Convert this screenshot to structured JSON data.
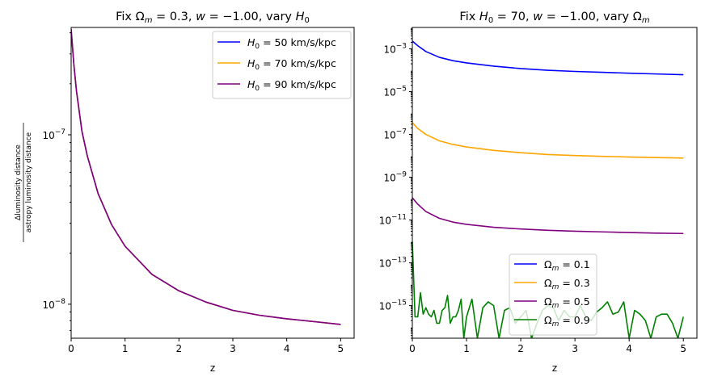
{
  "chart_data": [
    {
      "type": "line",
      "title": "Fix Ωₘ = 0.3, w = −1.00, vary H₀",
      "title_parts": {
        "a": "Fix ",
        "b": "Ω",
        "c": "m",
        "d": " = 0.3, ",
        "e": "w",
        "f": " = −1.00, vary ",
        "g": "H",
        "h": "0"
      },
      "xlabel": "z",
      "ylabel": {
        "numerator": "Δluminosity distance",
        "denominator": "astropy luminosity distance"
      },
      "yscale": "log",
      "xlim": [
        0,
        5.25
      ],
      "ylim": [
        6.3e-09,
        4.3e-07
      ],
      "xticks": [
        0,
        1,
        2,
        3,
        4,
        5
      ],
      "xtick_labels": [
        "0",
        "1",
        "2",
        "3",
        "4",
        "5"
      ],
      "yticks": [
        1e-08,
        1e-07
      ],
      "ytick_labels": [
        {
          "base": "10",
          "exp": "−8"
        },
        {
          "base": "10",
          "exp": "−7"
        }
      ],
      "legend_location": "upper right",
      "series": [
        {
          "name": "H₀ = 50 km/s/kpc",
          "legend": {
            "sym": "H",
            "sub": "0",
            "text": " = 50 km/s/kpc"
          },
          "color": "#0000ff",
          "x": [
            0,
            0.05,
            0.1,
            0.2,
            0.3,
            0.5,
            0.75,
            1,
            1.5,
            2,
            2.5,
            3,
            3.5,
            4,
            4.5,
            5
          ],
          "y": [
            4.2e-07,
            2.6e-07,
            1.8e-07,
            1.05e-07,
            7.5e-08,
            4.5e-08,
            2.95e-08,
            2.2e-08,
            1.5e-08,
            1.2e-08,
            1.03e-08,
            9.2e-09,
            8.6e-09,
            8.2e-09,
            7.9e-09,
            7.6e-09
          ]
        },
        {
          "name": "H₀ = 70 km/s/kpc",
          "legend": {
            "sym": "H",
            "sub": "0",
            "text": " = 70 km/s/kpc"
          },
          "color": "#ffa500",
          "x": [
            0,
            0.05,
            0.1,
            0.2,
            0.3,
            0.5,
            0.75,
            1,
            1.5,
            2,
            2.5,
            3,
            3.5,
            4,
            4.5,
            5
          ],
          "y": [
            4.2e-07,
            2.6e-07,
            1.8e-07,
            1.05e-07,
            7.5e-08,
            4.5e-08,
            2.95e-08,
            2.2e-08,
            1.5e-08,
            1.2e-08,
            1.03e-08,
            9.2e-09,
            8.6e-09,
            8.2e-09,
            7.9e-09,
            7.6e-09
          ]
        },
        {
          "name": "H₀ = 90 km/s/kpc",
          "legend": {
            "sym": "H",
            "sub": "0",
            "text": " = 90 km/s/kpc"
          },
          "color": "#800080",
          "x": [
            0,
            0.05,
            0.1,
            0.2,
            0.3,
            0.5,
            0.75,
            1,
            1.5,
            2,
            2.5,
            3,
            3.5,
            4,
            4.5,
            5
          ],
          "y": [
            4.2e-07,
            2.6e-07,
            1.8e-07,
            1.05e-07,
            7.5e-08,
            4.5e-08,
            2.95e-08,
            2.2e-08,
            1.5e-08,
            1.2e-08,
            1.03e-08,
            9.2e-09,
            8.6e-09,
            8.2e-09,
            7.9e-09,
            7.6e-09
          ]
        }
      ]
    },
    {
      "type": "line",
      "title": "Fix H₀ = 70, w = −1.00, vary Ωₘ",
      "title_parts": {
        "a": "Fix ",
        "b": "H",
        "c": "0",
        "d": " = 70, ",
        "e": "w",
        "f": " = −1.00, vary ",
        "g": "Ω",
        "h": "m"
      },
      "xlabel": "z",
      "yscale": "log",
      "xlim": [
        0,
        5.25
      ],
      "ylim": [
        3e-17,
        0.01
      ],
      "xticks": [
        0,
        1,
        2,
        3,
        4,
        5
      ],
      "xtick_labels": [
        "0",
        "1",
        "2",
        "3",
        "4",
        "5"
      ],
      "yticks": [
        1e-15,
        1e-13,
        1e-11,
        1e-09,
        1e-07,
        1e-05,
        0.001
      ],
      "ytick_labels": [
        {
          "base": "10",
          "exp": "−15"
        },
        {
          "base": "10",
          "exp": "−13"
        },
        {
          "base": "10",
          "exp": "−11"
        },
        {
          "base": "10",
          "exp": "−9"
        },
        {
          "base": "10",
          "exp": "−7"
        },
        {
          "base": "10",
          "exp": "−5"
        },
        {
          "base": "10",
          "exp": "−3"
        }
      ],
      "legend_location": "lower center",
      "series": [
        {
          "name": "Ωₘ = 0.1",
          "legend": {
            "sym": "Ω",
            "sub": "m",
            "text": " = 0.1"
          },
          "color": "#0000ff",
          "x": [
            0,
            0.1,
            0.25,
            0.5,
            0.75,
            1,
            1.5,
            2,
            2.5,
            3,
            3.5,
            4,
            4.5,
            5
          ],
          "y": [
            0.0023,
            0.0014,
            0.00075,
            0.0004,
            0.00028,
            0.00022,
            0.000155,
            0.00012,
            0.0001,
            8.8e-05,
            8e-05,
            7.3e-05,
            6.7e-05,
            6.2e-05
          ]
        },
        {
          "name": "Ωₘ = 0.3",
          "legend": {
            "sym": "Ω",
            "sub": "m",
            "text": " = 0.3"
          },
          "color": "#ffa500",
          "x": [
            0,
            0.1,
            0.25,
            0.5,
            0.75,
            1,
            1.5,
            2,
            2.5,
            3,
            3.5,
            4,
            4.5,
            5
          ],
          "y": [
            3.6e-07,
            1.9e-07,
            1e-07,
            5e-08,
            3.4e-08,
            2.6e-08,
            1.8e-08,
            1.4e-08,
            1.15e-08,
            1.03e-08,
            9.5e-09,
            8.8e-09,
            8.3e-09,
            7.9e-09
          ]
        },
        {
          "name": "Ωₘ = 0.5",
          "legend": {
            "sym": "Ω",
            "sub": "m",
            "text": " = 0.5"
          },
          "color": "#800080",
          "x": [
            0,
            0.1,
            0.25,
            0.5,
            0.75,
            1,
            1.5,
            2,
            2.5,
            3,
            3.5,
            4,
            4.5,
            5
          ],
          "y": [
            1.1e-10,
            5.5e-11,
            2.5e-11,
            1.2e-11,
            8e-12,
            6.3e-12,
            4.6e-12,
            3.8e-12,
            3.3e-12,
            3e-12,
            2.8e-12,
            2.6e-12,
            2.45e-12,
            2.35e-12
          ]
        },
        {
          "name": "Ωₘ = 0.9",
          "legend": {
            "sym": "Ω",
            "sub": "m",
            "text": " = 0.9"
          },
          "color": "#008000",
          "x": [
            0,
            0.05,
            0.1,
            0.15,
            0.2,
            0.25,
            0.3,
            0.35,
            0.4,
            0.45,
            0.5,
            0.55,
            0.6,
            0.65,
            0.7,
            0.75,
            0.8,
            0.85,
            0.9,
            0.95,
            1,
            1.1,
            1.2,
            1.3,
            1.4,
            1.5,
            1.6,
            1.7,
            1.8,
            1.9,
            2,
            2.1,
            2.2,
            2.3,
            2.4,
            2.5,
            2.6,
            2.7,
            2.8,
            2.9,
            3,
            3.1,
            3.2,
            3.3,
            3.4,
            3.5,
            3.6,
            3.7,
            3.8,
            3.9,
            4,
            4.1,
            4.2,
            4.3,
            4.4,
            4.5,
            4.6,
            4.7,
            4.8,
            4.9,
            5
          ],
          "y": [
            1e-12,
            3e-16,
            3e-16,
            4e-15,
            4e-16,
            8e-16,
            4e-16,
            3e-16,
            6e-16,
            1.5e-16,
            1.5e-16,
            6e-16,
            8e-16,
            3e-15,
            1.5e-16,
            3e-16,
            3e-16,
            6e-16,
            2e-15,
            3e-17,
            3e-16,
            2e-15,
            3e-17,
            8e-16,
            1.5e-15,
            1e-15,
            3e-17,
            6e-16,
            8e-16,
            1.5e-16,
            3e-16,
            6e-16,
            3e-17,
            1.5e-16,
            6e-16,
            1e-15,
            8e-16,
            2e-16,
            6e-16,
            3e-16,
            3e-16,
            1e-15,
            3e-16,
            2e-16,
            5e-16,
            8e-16,
            1.5e-15,
            4e-16,
            5e-16,
            1.5e-15,
            3e-17,
            6e-16,
            4e-16,
            2e-16,
            3e-17,
            3e-16,
            4e-16,
            4e-16,
            1.5e-16,
            3e-17,
            3e-16
          ]
        }
      ]
    }
  ]
}
